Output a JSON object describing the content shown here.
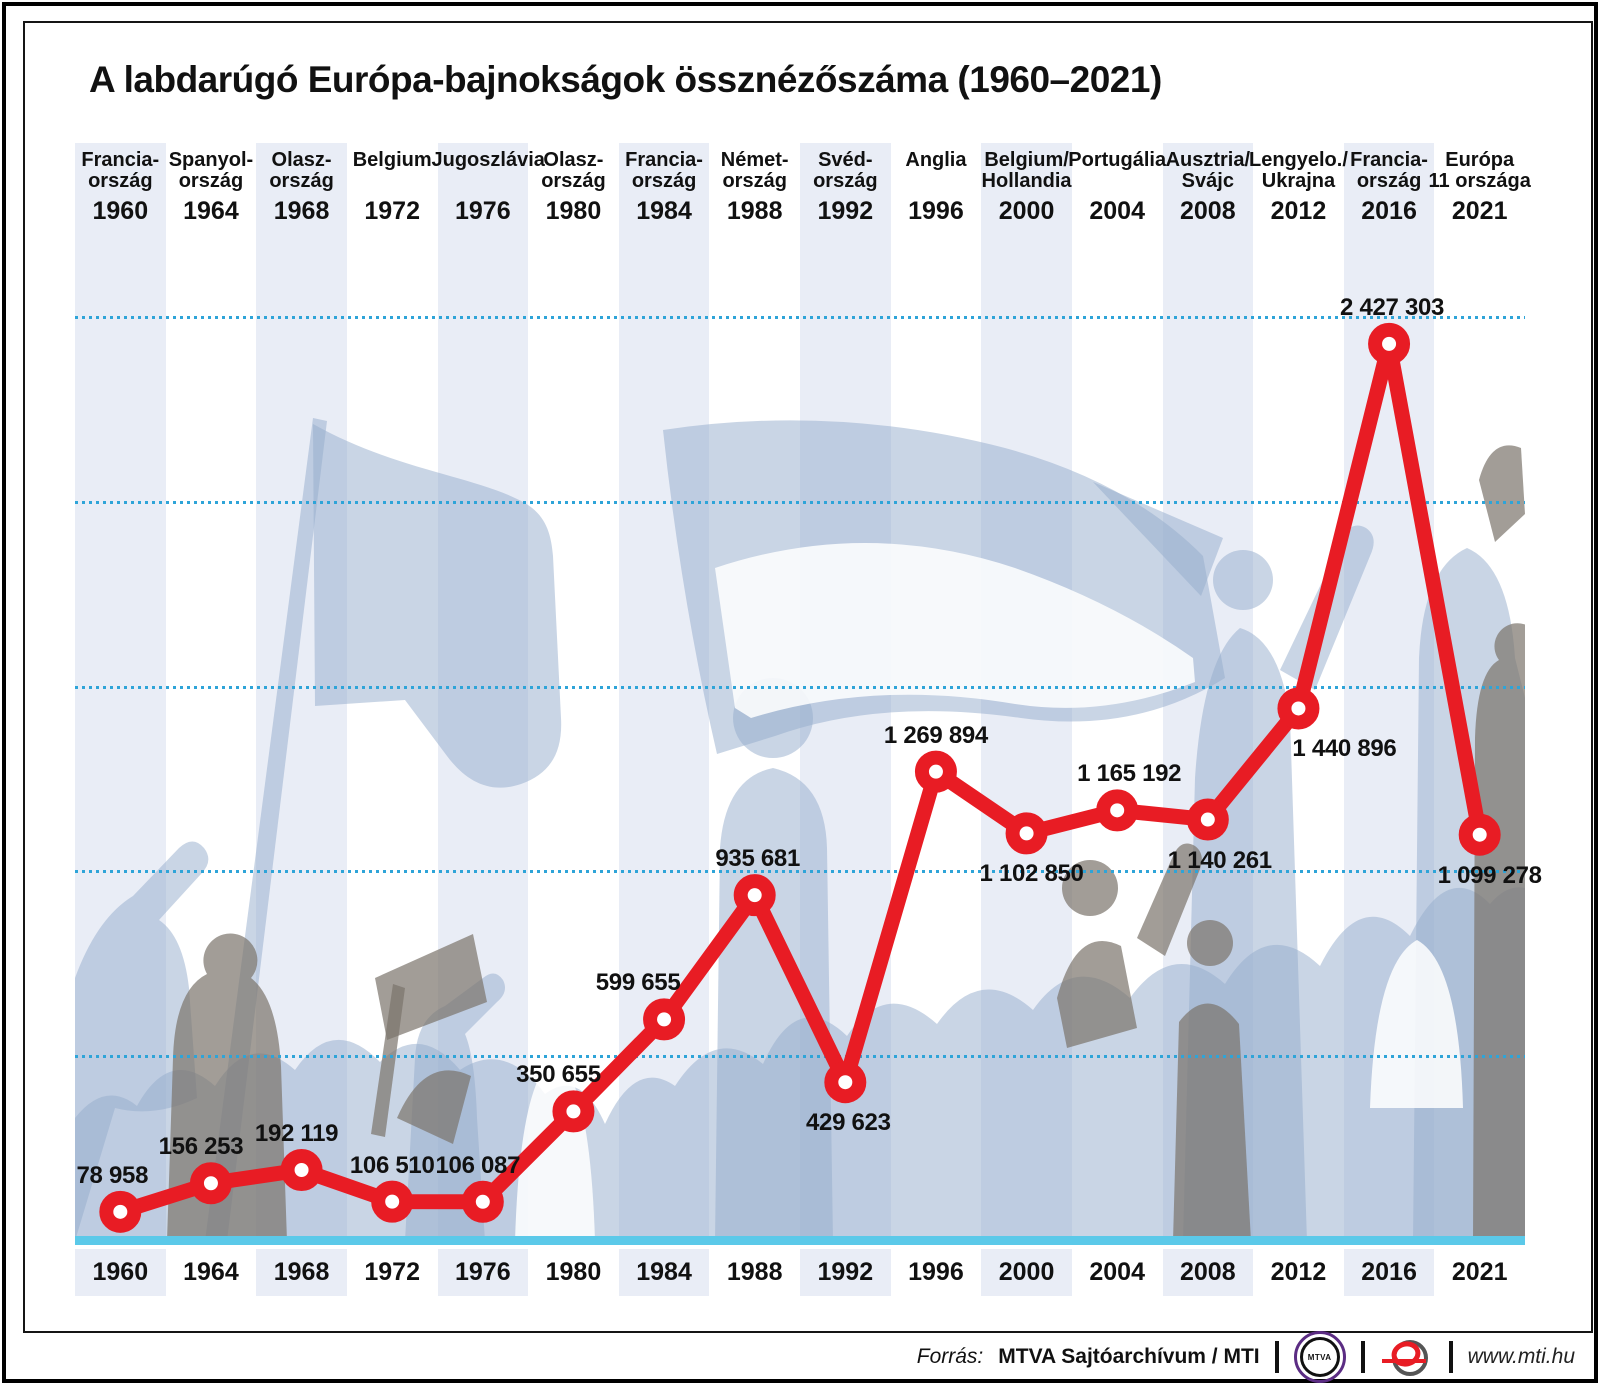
{
  "chart_data": {
    "type": "line",
    "title": "A labdarúgó Európa-bajnokságok össznézőszáma (1960–2021)",
    "ylim": [
      0,
      2700000
    ],
    "grid_interval": 500000,
    "gridlines": [
      500000,
      1000000,
      1500000,
      2000000,
      2500000
    ],
    "grid_on": true,
    "legend": "none",
    "line_color": "#e81c24",
    "grid_color": "#2ea4d8",
    "axis_color": "#5bc9e9",
    "stripe_color": "#e9edf6",
    "points": [
      {
        "year": "1960",
        "host_lines": [
          "Francia-",
          "ország"
        ],
        "value": 78958,
        "label": "78 958",
        "label_pos": "above",
        "label_dx": -8
      },
      {
        "year": "1964",
        "host_lines": [
          "Spanyol-",
          "ország"
        ],
        "value": 156253,
        "label": "156 253",
        "label_pos": "above",
        "label_dx": -10
      },
      {
        "year": "1968",
        "host_lines": [
          "Olasz-",
          "ország"
        ],
        "value": 192119,
        "label": "192 119",
        "label_pos": "above",
        "label_dx": -5
      },
      {
        "year": "1972",
        "host_lines": [
          "Belgium"
        ],
        "value": 106510,
        "label": "106 510",
        "label_pos": "above",
        "label_dx": 0
      },
      {
        "year": "1976",
        "host_lines": [
          "Jugoszlávia"
        ],
        "value": 106087,
        "label": "106 087",
        "label_pos": "above",
        "label_dx": -5
      },
      {
        "year": "1980",
        "host_lines": [
          "Olasz-",
          "ország"
        ],
        "value": 350655,
        "label": "350 655",
        "label_pos": "above",
        "label_dx": -15
      },
      {
        "year": "1984",
        "host_lines": [
          "Francia-",
          "ország"
        ],
        "value": 599655,
        "label": "599 655",
        "label_pos": "above",
        "label_dx": -26
      },
      {
        "year": "1988",
        "host_lines": [
          "Német-",
          "ország"
        ],
        "value": 935681,
        "label": "935 681",
        "label_pos": "above",
        "label_dx": 3
      },
      {
        "year": "1992",
        "host_lines": [
          "Svéd-",
          "ország"
        ],
        "value": 429623,
        "label": "429 623",
        "label_pos": "below",
        "label_dx": 3
      },
      {
        "year": "1996",
        "host_lines": [
          "Anglia"
        ],
        "value": 1269894,
        "label": "1 269 894",
        "label_pos": "above",
        "label_dx": 0
      },
      {
        "year": "2000",
        "host_lines": [
          "Belgium/",
          "Hollandia"
        ],
        "value": 1102850,
        "label": "1 102 850",
        "label_pos": "below",
        "label_dx": 5
      },
      {
        "year": "2004",
        "host_lines": [
          "Portugália"
        ],
        "value": 1165192,
        "label": "1 165 192",
        "label_pos": "above",
        "label_dx": 12
      },
      {
        "year": "2008",
        "host_lines": [
          "Ausztria/",
          "Svájc"
        ],
        "value": 1140261,
        "label": "1 140 261",
        "label_pos": "below",
        "label_dx": 12
      },
      {
        "year": "2012",
        "host_lines": [
          "Lengyelo./",
          "Ukrajna"
        ],
        "value": 1440896,
        "label": "1 440 896",
        "label_pos": "below",
        "label_dx": 46
      },
      {
        "year": "2016",
        "host_lines": [
          "Francia-",
          "ország"
        ],
        "value": 2427303,
        "label": "2 427 303",
        "label_pos": "above",
        "label_dx": 3
      },
      {
        "year": "2021",
        "host_lines": [
          "Európa",
          "11 országa"
        ],
        "value": 1099278,
        "label": "1 099 278",
        "label_pos": "below",
        "label_dx": 10
      }
    ]
  },
  "footer": {
    "source_label": "Forrás:",
    "source": "MTVA Sajtóarchívum / MTI",
    "separator": "",
    "mtva_logo_text": "MTVA",
    "url": "www.mti.hu"
  }
}
